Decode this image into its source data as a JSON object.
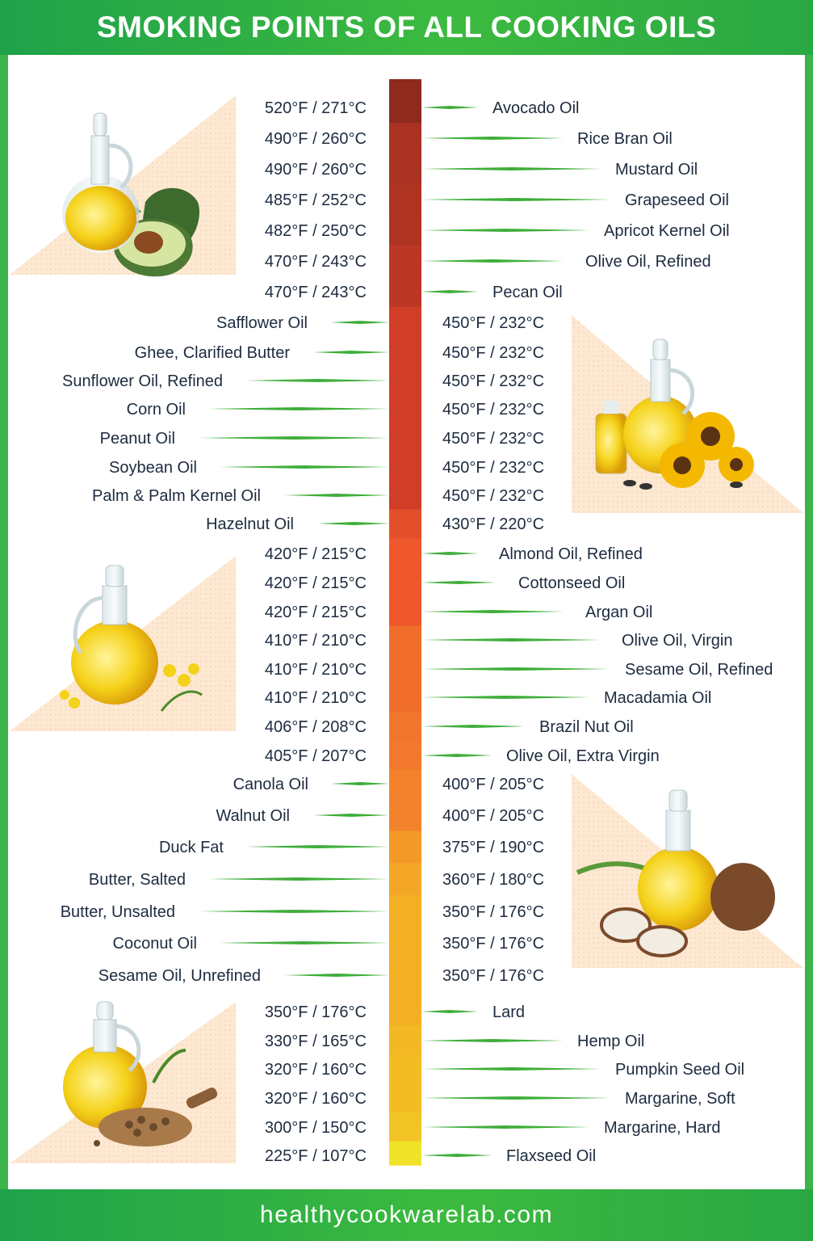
{
  "header": {
    "title": "SMOKING POINTS OF ALL COOKING OILS"
  },
  "footer": {
    "site": "healthycookwarelab.com"
  },
  "colors": {
    "header_green": "#2aa844",
    "leader_green": "#3fae3a",
    "text": "#1d2b3f",
    "scale_top": "#8e2a1e",
    "scale_bottom": "#f0e026"
  },
  "illustrations": [
    "oil-bottle-avocado-icon",
    "oil-bottle-sunflower-icon",
    "oil-bottle-canola-flower-icon",
    "oil-bottle-coconut-icon",
    "oil-bottle-hemp-seed-icon"
  ],
  "chart_data": {
    "type": "table",
    "items": [
      {
        "name": "Avocado Oil",
        "temp": "520°F / 271°C",
        "f": 520
      },
      {
        "name": "Rice Bran Oil",
        "temp": "490°F / 260°C",
        "f": 490
      },
      {
        "name": "Mustard Oil",
        "temp": "490°F / 260°C",
        "f": 490
      },
      {
        "name": "Grapeseed Oil",
        "temp": "485°F / 252°C",
        "f": 485
      },
      {
        "name": "Apricot Kernel Oil",
        "temp": "482°F / 250°C",
        "f": 482
      },
      {
        "name": "Olive Oil, Refined",
        "temp": "470°F / 243°C",
        "f": 470
      },
      {
        "name": "Pecan Oil",
        "temp": "470°F / 243°C",
        "f": 470
      },
      {
        "name": "Safflower Oil",
        "temp": "450°F / 232°C",
        "f": 450
      },
      {
        "name": "Ghee, Clarified Butter",
        "temp": "450°F / 232°C",
        "f": 450
      },
      {
        "name": "Sunflower Oil, Refined",
        "temp": "450°F / 232°C",
        "f": 450
      },
      {
        "name": "Corn Oil",
        "temp": "450°F / 232°C",
        "f": 450
      },
      {
        "name": "Peanut Oil",
        "temp": "450°F / 232°C",
        "f": 450
      },
      {
        "name": "Soybean Oil",
        "temp": "450°F / 232°C",
        "f": 450
      },
      {
        "name": "Palm & Palm Kernel Oil",
        "temp": "450°F / 232°C",
        "f": 450
      },
      {
        "name": "Hazelnut Oil",
        "temp": "430°F / 220°C",
        "f": 430
      },
      {
        "name": "Almond Oil, Refined",
        "temp": "420°F / 215°C",
        "f": 420
      },
      {
        "name": "Cottonseed Oil",
        "temp": "420°F / 215°C",
        "f": 420
      },
      {
        "name": "Argan Oil",
        "temp": "420°F / 215°C",
        "f": 420
      },
      {
        "name": "Olive Oil, Virgin",
        "temp": "410°F / 210°C",
        "f": 410
      },
      {
        "name": "Sesame Oil, Refined",
        "temp": "410°F / 210°C",
        "f": 410
      },
      {
        "name": "Macadamia Oil",
        "temp": "410°F / 210°C",
        "f": 410
      },
      {
        "name": "Brazil Nut Oil",
        "temp": "406°F / 208°C",
        "f": 406
      },
      {
        "name": "Olive Oil, Extra Virgin",
        "temp": "405°F / 207°C",
        "f": 405
      },
      {
        "name": "Canola Oil",
        "temp": "400°F / 205°C",
        "f": 400
      },
      {
        "name": "Walnut Oil",
        "temp": "400°F / 205°C",
        "f": 400
      },
      {
        "name": "Duck Fat",
        "temp": "375°F / 190°C",
        "f": 375
      },
      {
        "name": "Butter, Salted",
        "temp": "360°F / 180°C",
        "f": 360
      },
      {
        "name": "Butter, Unsalted",
        "temp": "350°F / 176°C",
        "f": 350
      },
      {
        "name": "Coconut Oil",
        "temp": "350°F / 176°C",
        "f": 350
      },
      {
        "name": "Sesame Oil, Unrefined",
        "temp": "350°F / 176°C",
        "f": 350
      },
      {
        "name": "Lard",
        "temp": "350°F / 176°C",
        "f": 350
      },
      {
        "name": "Hemp Oil",
        "temp": "330°F / 165°C",
        "f": 330
      },
      {
        "name": "Pumpkin Seed Oil",
        "temp": "320°F / 160°C",
        "f": 320
      },
      {
        "name": "Margarine, Soft",
        "temp": "320°F / 160°C",
        "f": 320
      },
      {
        "name": "Margarine, Hard",
        "temp": "300°F / 150°C",
        "f": 300
      },
      {
        "name": "Flaxseed Oil",
        "temp": "225°F / 107°C",
        "f": 225
      }
    ]
  }
}
